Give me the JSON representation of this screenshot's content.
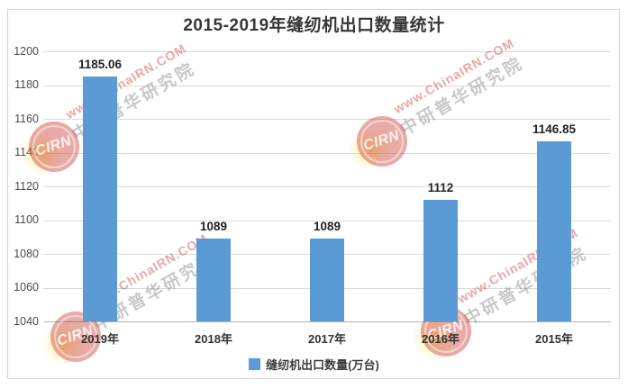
{
  "title": "2015-2019年缝纫机出口数量统计",
  "chart_data": {
    "type": "bar",
    "title": "2015-2019年缝纫机出口数量统计",
    "categories": [
      "2019年",
      "2018年",
      "2017年",
      "2016年",
      "2015年"
    ],
    "values": [
      1185.06,
      1089,
      1089,
      1112,
      1146.85
    ],
    "value_labels": [
      "1185.06",
      "1089",
      "1089",
      "1112",
      "1146.85"
    ],
    "series_name": "缝纫机出口数量(万台)",
    "xlabel": "",
    "ylabel": "",
    "ylim": [
      1040,
      1200
    ],
    "yticks": [
      1040,
      1060,
      1080,
      1100,
      1120,
      1140,
      1160,
      1180,
      1200
    ],
    "grid": true,
    "legend_position": "bottom",
    "bar_color": "#5B9BD5"
  },
  "legend": {
    "label": "缝纫机出口数量(万台)",
    "swatch_color": "#5B9BD5"
  },
  "watermark": {
    "line1": "www.ChinaIRN.COM",
    "line2": "中研普华研究院",
    "logo_text": "CIRN"
  }
}
